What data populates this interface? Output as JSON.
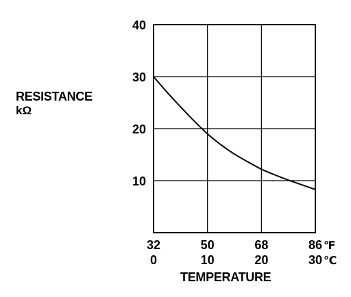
{
  "chart_data": {
    "type": "line",
    "ylabel": "RESISTANCE",
    "ylabel_unit": "kΩ",
    "xlabel": "TEMPERATURE",
    "ylim": [
      0,
      40
    ],
    "yticks": [
      10,
      20,
      30,
      40
    ],
    "xlim_celsius": [
      0,
      30
    ],
    "x_ticks_fahrenheit": [
      "32",
      "50",
      "68",
      "86"
    ],
    "x_ticks_celsius": [
      "0",
      "10",
      "20",
      "30"
    ],
    "x_unit_fahrenheit": "℉",
    "x_unit_celsius": "℃",
    "grid": true,
    "series": [
      {
        "x_celsius": [
          0,
          2.5,
          5,
          7.5,
          10,
          12.5,
          15,
          17.5,
          20,
          22.5,
          25,
          27.5,
          30
        ],
        "values": [
          30,
          27,
          24.2,
          21.5,
          19,
          16.9,
          15.1,
          13.6,
          12.2,
          11.1,
          10.1,
          9.2,
          8.3
        ]
      }
    ]
  }
}
